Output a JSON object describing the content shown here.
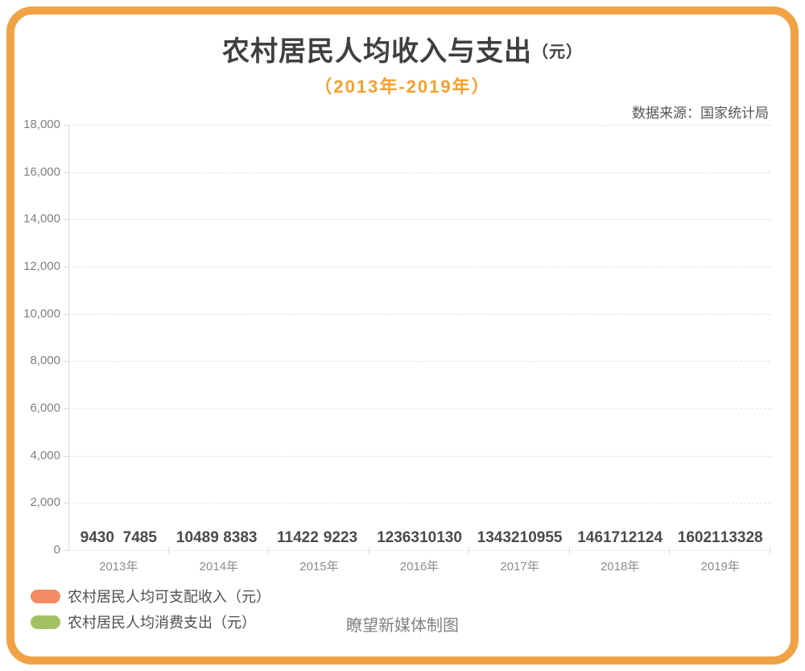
{
  "header": {
    "title_main": "农村居民人均收入与支出",
    "title_unit": "（元）",
    "subtitle": "（2013年-2019年）",
    "source": "数据来源：国家统计局"
  },
  "chart_data": {
    "type": "bar",
    "categories": [
      "2013年",
      "2014年",
      "2015年",
      "2016年",
      "2017年",
      "2018年",
      "2019年"
    ],
    "series": [
      {
        "name": "农村居民人均可支配收入（元）",
        "color": "#F28B64",
        "values": [
          9430,
          10489,
          11422,
          12363,
          13432,
          14617,
          16021
        ]
      },
      {
        "name": "农村居民人均消费支出（元）",
        "color": "#A3C163",
        "values": [
          7485,
          8383,
          9223,
          10130,
          10955,
          12124,
          13328
        ]
      }
    ],
    "title": "农村居民人均收入与支出（元）",
    "subtitle": "（2013年-2019年）",
    "xlabel": "",
    "ylabel": "",
    "ylim": [
      0,
      18000
    ],
    "ytick_step": 2000,
    "ytick_labels": [
      "0",
      "2,000",
      "4,000",
      "6,000",
      "8,000",
      "10,000",
      "12,000",
      "14,000",
      "16,000",
      "18,000"
    ],
    "grid": "dashed-horizontal",
    "legend_position": "bottom-left",
    "value_labels_visible": true,
    "bars_drawn_at_zero_height": true
  },
  "footer": {
    "credit": "瞭望新媒体制图"
  },
  "colors": {
    "frame_border": "#F0A245",
    "title": "#3F3F3F",
    "subtitle_orange": "#F5A02E",
    "gridline": "#E1E1E1",
    "axis_line": "#D9D9D9",
    "value_label": "#4A4A4A",
    "tick_label": "#7F7F7F",
    "year_label": "#8C8C8C",
    "income_series": "#F28B64",
    "expense_series": "#A3C163"
  }
}
